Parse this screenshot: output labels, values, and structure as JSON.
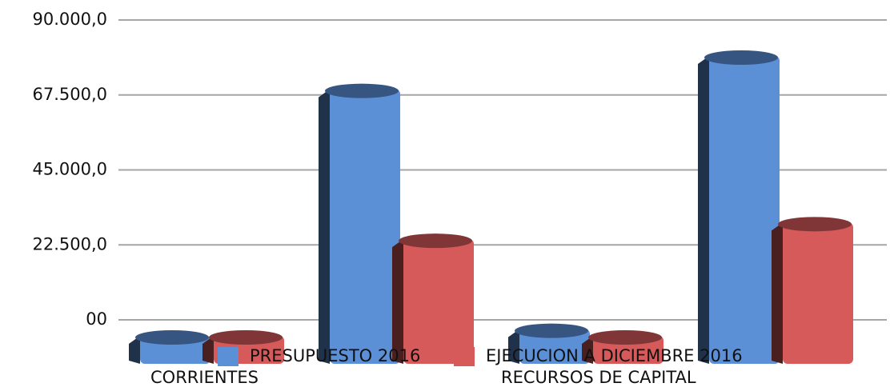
{
  "chart_data": {
    "type": "bar3d",
    "categories": [
      "CORRIENTES",
      null,
      "RECURSOS DE CAPITAL",
      null
    ],
    "series": [
      {
        "name": "PRESUPUESTO 2016",
        "color": "#5b8fd6",
        "values": [
          0,
          74000,
          2000,
          84000
        ]
      },
      {
        "name": "EJECUCION A DICIEMBRE 2016",
        "color": "#d65a5a",
        "values": [
          0,
          29000,
          0,
          34000
        ]
      }
    ],
    "ylim": [
      0,
      90000
    ],
    "yticks": [
      {
        "value": 0,
        "label": "00"
      },
      {
        "value": 22500,
        "label": "22.500,0"
      },
      {
        "value": 45000,
        "label": "45.000,0"
      },
      {
        "value": 67500,
        "label": "67.500,0"
      },
      {
        "value": 90000,
        "label": "90.000,0"
      }
    ],
    "grid": true
  }
}
